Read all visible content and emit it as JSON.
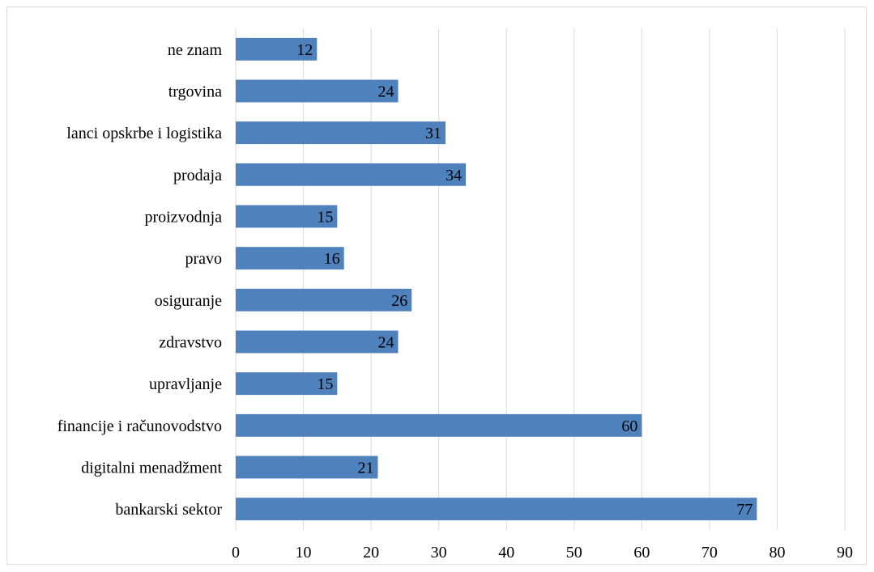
{
  "chart_data": {
    "type": "bar",
    "orientation": "horizontal",
    "categories": [
      "bankarski sektor",
      "digitalni menadžment",
      "financije i računovodstvo",
      "upravljanje",
      "zdravstvo",
      "osiguranje",
      "pravo",
      "proizvodnja",
      "prodaja",
      "lanci opskrbe i logistika",
      "trgovina",
      "ne znam"
    ],
    "values": [
      77,
      21,
      60,
      15,
      24,
      26,
      16,
      15,
      34,
      31,
      24,
      12
    ],
    "xlim": [
      0,
      90
    ],
    "xticks": [
      0,
      10,
      20,
      30,
      40,
      50,
      60,
      70,
      80,
      90
    ],
    "grid": "vertical",
    "data_labels": true,
    "bar_color": "#4f81bd",
    "grid_color": "#d9d9d9"
  }
}
